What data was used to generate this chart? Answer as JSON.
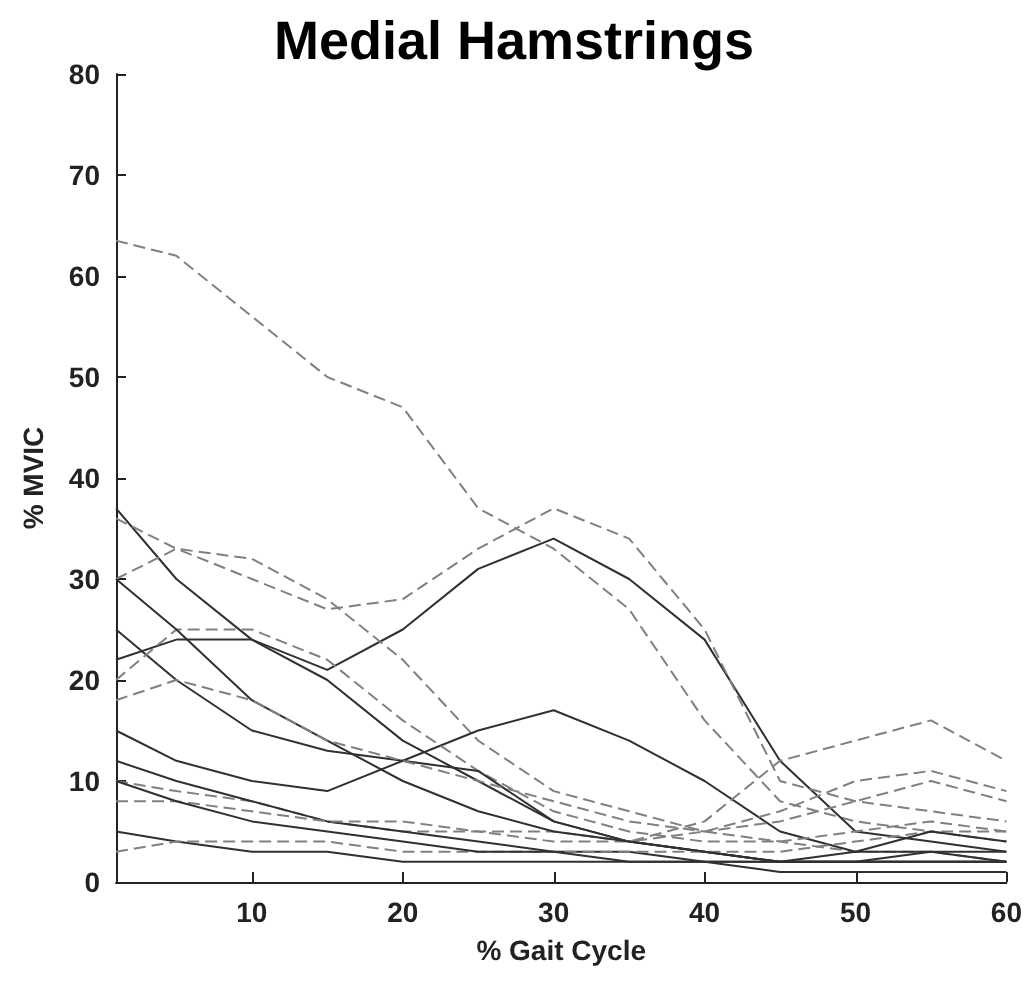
{
  "chart_data": {
    "type": "line",
    "title": "Medial Hamstrings",
    "xlabel": "% Gait Cycle",
    "ylabel": "% MVIC",
    "x": [
      1,
      5,
      10,
      15,
      20,
      25,
      30,
      35,
      40,
      45,
      50,
      55,
      60
    ],
    "xlim": [
      1,
      60
    ],
    "xticks": [
      10,
      20,
      30,
      40,
      50,
      60
    ],
    "ylim": [
      0,
      80
    ],
    "yticks": [
      0,
      10,
      20,
      30,
      40,
      50,
      60,
      70,
      80
    ],
    "grid": false,
    "marker": "none",
    "series": [
      {
        "color": "#808080",
        "line_style": "dashed",
        "values": [
          63.5,
          62,
          56,
          50,
          47,
          37,
          33,
          27,
          16,
          8,
          6,
          5,
          4
        ]
      },
      {
        "color": "#303030",
        "line_style": "solid",
        "values": [
          37,
          30,
          24,
          21,
          25,
          31,
          34,
          30,
          24,
          12,
          5,
          4,
          3
        ]
      },
      {
        "color": "#808080",
        "line_style": "dashed",
        "values": [
          36,
          33,
          30,
          27,
          28,
          33,
          37,
          34,
          25,
          10,
          8,
          7,
          6
        ]
      },
      {
        "color": "#808080",
        "line_style": "dashed",
        "values": [
          30,
          33,
          32,
          28,
          22,
          14,
          9,
          7,
          5,
          4,
          3,
          3,
          2
        ]
      },
      {
        "color": "#303030",
        "line_style": "solid",
        "values": [
          25,
          20,
          15,
          13,
          12,
          15,
          17,
          14,
          10,
          5,
          3,
          3,
          2
        ]
      },
      {
        "color": "#808080",
        "line_style": "dashed",
        "values": [
          10,
          9,
          8,
          6,
          5,
          5,
          4,
          4,
          6,
          12,
          14,
          16,
          12
        ]
      },
      {
        "color": "#303030",
        "line_style": "solid",
        "values": [
          22,
          24,
          24,
          20,
          14,
          10,
          6,
          4,
          3,
          2,
          2,
          2,
          2
        ]
      },
      {
        "color": "#808080",
        "line_style": "dashed",
        "values": [
          20,
          25,
          25,
          22,
          16,
          11,
          7,
          5,
          4,
          4,
          5,
          6,
          5
        ]
      },
      {
        "color": "#303030",
        "line_style": "solid",
        "values": [
          12,
          10,
          8,
          6,
          5,
          4,
          3,
          3,
          2,
          2,
          2,
          2,
          2
        ]
      },
      {
        "color": "#303030",
        "line_style": "solid",
        "values": [
          15,
          12,
          10,
          9,
          12,
          11,
          6,
          4,
          3,
          2,
          2,
          3,
          3
        ]
      },
      {
        "color": "#808080",
        "line_style": "dashed",
        "values": [
          8,
          8,
          7,
          6,
          6,
          5,
          5,
          4,
          5,
          7,
          10,
          11,
          9
        ]
      },
      {
        "color": "#303030",
        "line_style": "solid",
        "values": [
          5,
          4,
          3,
          3,
          2,
          2,
          2,
          2,
          2,
          1,
          1,
          1,
          1
        ]
      },
      {
        "color": "#808080",
        "line_style": "dashed",
        "values": [
          3,
          4,
          4,
          4,
          3,
          3,
          3,
          3,
          3,
          3,
          4,
          5,
          5
        ]
      },
      {
        "color": "#303030",
        "line_style": "solid",
        "values": [
          10,
          8,
          6,
          5,
          4,
          3,
          3,
          2,
          2,
          2,
          3,
          5,
          4
        ]
      },
      {
        "color": "#303030",
        "line_style": "solid",
        "values": [
          30,
          25,
          18,
          14,
          10,
          7,
          5,
          4,
          3,
          2,
          2,
          2,
          2
        ]
      },
      {
        "color": "#808080",
        "line_style": "dashed",
        "values": [
          18,
          20,
          18,
          14,
          12,
          10,
          8,
          6,
          5,
          6,
          8,
          10,
          8
        ]
      }
    ]
  }
}
